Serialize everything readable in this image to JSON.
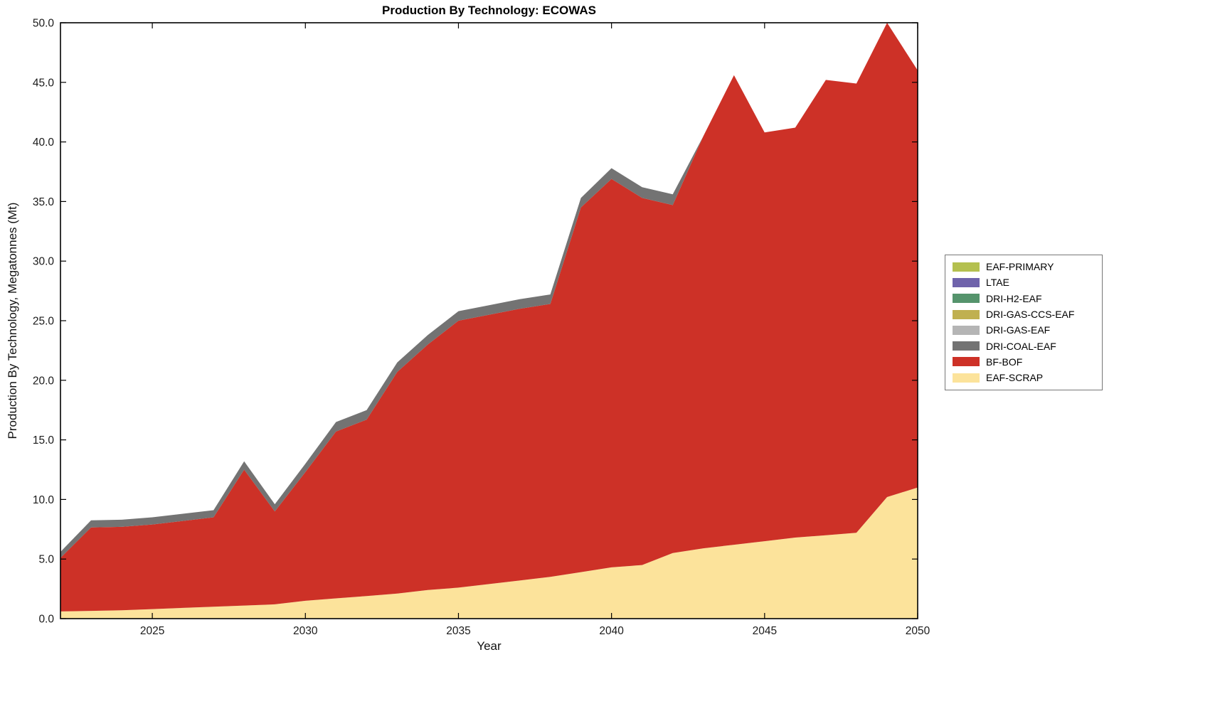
{
  "chart_data": {
    "type": "area",
    "stacked": true,
    "title": "Production By Technology: ECOWAS",
    "xlabel": "Year",
    "ylabel": "Production By Technology, Megatonnes (Mt)",
    "xlim": [
      2022,
      2050
    ],
    "ylim": [
      0,
      50
    ],
    "xticks": [
      2025,
      2030,
      2035,
      2040,
      2045,
      2050
    ],
    "yticks": [
      0,
      5,
      10,
      15,
      20,
      25,
      30,
      35,
      40,
      45,
      50
    ],
    "ytick_format": "one_decimal",
    "grid": false,
    "legend_position": "right-outside",
    "background_color": "#ffffff",
    "x": [
      2022,
      2023,
      2024,
      2025,
      2026,
      2027,
      2028,
      2029,
      2030,
      2031,
      2032,
      2033,
      2034,
      2035,
      2036,
      2037,
      2038,
      2039,
      2040,
      2041,
      2042,
      2043,
      2044,
      2045,
      2046,
      2047,
      2048,
      2049,
      2050
    ],
    "series_note": "series listed in legend order (top to bottom); stacking bottom-to-top is the reverse of this order",
    "series": [
      {
        "name": "EAF-PRIMARY",
        "color": "#b4c04f",
        "values": [
          0,
          0,
          0,
          0,
          0,
          0,
          0,
          0,
          0,
          0,
          0,
          0,
          0,
          0,
          0,
          0,
          0,
          0,
          0,
          0,
          0,
          0,
          0,
          0,
          0,
          0,
          0,
          0,
          0
        ]
      },
      {
        "name": "LTAE",
        "color": "#6f63ab",
        "values": [
          0,
          0,
          0,
          0,
          0,
          0,
          0,
          0,
          0,
          0,
          0,
          0,
          0,
          0,
          0,
          0,
          0,
          0,
          0,
          0,
          0,
          0,
          0,
          0,
          0,
          0,
          0,
          0,
          0
        ]
      },
      {
        "name": "DRI-H2-EAF",
        "color": "#55946c",
        "values": [
          0,
          0,
          0,
          0,
          0,
          0,
          0,
          0,
          0,
          0,
          0,
          0,
          0,
          0,
          0,
          0,
          0,
          0,
          0,
          0,
          0,
          0,
          0,
          0,
          0,
          0,
          0,
          0,
          0
        ]
      },
      {
        "name": "DRI-GAS-CCS-EAF",
        "color": "#c0b050",
        "values": [
          0,
          0,
          0,
          0,
          0,
          0,
          0,
          0,
          0,
          0,
          0,
          0,
          0,
          0,
          0,
          0,
          0,
          0,
          0,
          0,
          0,
          0,
          0,
          0,
          0,
          0,
          0,
          0,
          0
        ]
      },
      {
        "name": "DRI-GAS-EAF",
        "color": "#b5b5b5",
        "values": [
          0,
          0,
          0,
          0,
          0,
          0,
          0,
          0,
          0,
          0,
          0,
          0,
          0,
          0,
          0,
          0,
          0,
          0,
          0,
          0,
          0,
          0,
          0,
          0,
          0,
          0,
          0,
          0,
          0
        ]
      },
      {
        "name": "DRI-COAL-EAF",
        "color": "#737373",
        "values": [
          0.5,
          0.6,
          0.6,
          0.6,
          0.6,
          0.6,
          0.7,
          0.6,
          0.7,
          0.8,
          0.8,
          0.8,
          0.8,
          0.8,
          0.8,
          0.8,
          0.8,
          0.8,
          0.9,
          0.9,
          0.9,
          0,
          0,
          0,
          0,
          0,
          0,
          0,
          0
        ]
      },
      {
        "name": "BF-BOF",
        "color": "#cd3127",
        "values": [
          4.5,
          7.0,
          7.0,
          7.1,
          7.3,
          7.5,
          11.4,
          7.8,
          10.8,
          14.0,
          14.8,
          18.6,
          20.6,
          22.4,
          22.6,
          22.8,
          22.9,
          30.6,
          32.6,
          30.8,
          29.2,
          34.6,
          39.4,
          34.3,
          34.4,
          38.2,
          37.7,
          39.8,
          35.0
        ]
      },
      {
        "name": "EAF-SCRAP",
        "color": "#fce39b",
        "values": [
          0.6,
          0.65,
          0.7,
          0.8,
          0.9,
          1.0,
          1.1,
          1.2,
          1.5,
          1.7,
          1.9,
          2.1,
          2.4,
          2.6,
          2.9,
          3.2,
          3.5,
          3.9,
          4.3,
          4.5,
          5.5,
          5.9,
          6.2,
          6.5,
          6.8,
          7.0,
          7.2,
          10.2,
          11.0
        ]
      }
    ]
  }
}
